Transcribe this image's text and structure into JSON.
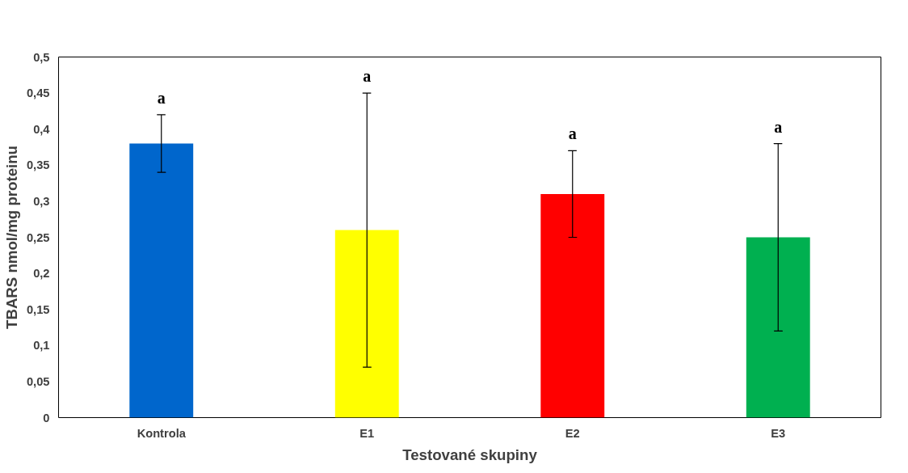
{
  "chart_data": {
    "type": "bar",
    "xlabel": "Testované skupiny",
    "ylabel": "TBARS nmol/mg proteinu",
    "categories": [
      "Kontrola",
      "E1",
      "E2",
      "E3"
    ],
    "values": [
      0.38,
      0.26,
      0.31,
      0.25
    ],
    "colors": [
      "#0066cc",
      "#ffff00",
      "#ff0000",
      "#00b050"
    ],
    "errors": [
      [
        0.34,
        0.42
      ],
      [
        0.07,
        0.45
      ],
      [
        0.25,
        0.37
      ],
      [
        0.12,
        0.38
      ]
    ],
    "ylim": [
      0,
      0.5
    ],
    "yticks": [
      0,
      {
        "value": 0.05,
        "label": "0,05"
      },
      {
        "value": 0.1,
        "label": "0,1"
      },
      {
        "value": 0.15,
        "label": "0,15"
      },
      {
        "value": 0.2,
        "label": "0,2"
      },
      {
        "value": 0.25,
        "label": "0,25"
      },
      {
        "value": 0.3,
        "label": "0,3"
      },
      {
        "value": 0.35,
        "label": "0,35"
      },
      {
        "value": 0.4,
        "label": "0,4"
      },
      {
        "value": 0.45,
        "label": "0,45"
      },
      {
        "value": 0.5,
        "label": "0,5"
      }
    ],
    "annotations": [
      "a",
      "a",
      "a",
      "a"
    ],
    "grid": false
  }
}
